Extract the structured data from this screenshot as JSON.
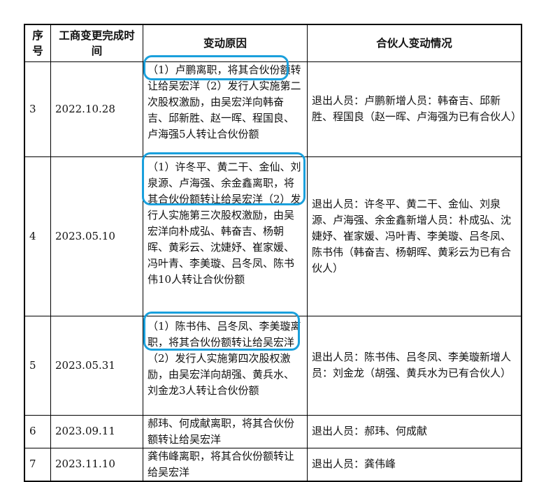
{
  "header": {
    "seq": "序号",
    "date": "工商变更完成时间",
    "reason": "变动原因",
    "change": "合伙人变动情况"
  },
  "rows": [
    {
      "seq": "3",
      "date": "2022.10.28",
      "reason": "（1）卢鹏离职，将其合伙份额转让给吴宏洋（2）发行人实施第二次股权激励，由吴宏洋向韩奋吉、邱新胜、赵一晖、程国良、卢海强5人转让合伙份额",
      "change": "退出人员：卢鹏新增人员：韩奋吉、邱新胜、程国良（赵一晖、卢海强为已有合伙人）"
    },
    {
      "seq": "4",
      "date": "2023.05.10",
      "reason": "（1）许冬平、黄二干、金仙、刘泉源、卢海强、余金鑫离职，将其合伙份额转让给吴宏洋（2）发行人实施第三次股权激励，由吴宏洋向朴成弘、韩奋吉、杨朝晖、黄彩云、沈婕妤、崔家媛、冯叶青、李美璇、吕冬凤、陈书伟10人转让合伙份额",
      "change": "退出人员：许冬平、黄二干、金仙、刘泉源、卢海强、余金鑫新增人员：朴成弘、沈婕妤、崔家媛、冯叶青、李美璇、吕冬凤、陈书伟（韩奋吉、杨朝晖、黄彩云为已有合伙人）"
    },
    {
      "seq": "5",
      "date": "2023.05.31",
      "reason": "（1）陈书伟、吕冬凤、李美璇离职，将其合伙份额转让给吴宏洋（2）发行人实施第四次股权激励，由吴宏洋向胡强、黄兵水、刘金龙3人转让合伙份额",
      "change": "退出人员：陈书伟、吕冬凤、李美璇新增人员：刘金龙（胡强、黄兵水为已有合伙人）"
    },
    {
      "seq": "6",
      "date": "2023.09.11",
      "reason": "郝玮、何成献离职，将其合伙份额转让给吴宏洋",
      "change": "退出人员：郝玮、何成献"
    },
    {
      "seq": "7",
      "date": "2023.11.10",
      "reason": "龚伟峰离职，将其合伙份额转让给吴宏洋",
      "change": "退出人员：龚伟峰"
    }
  ],
  "highlight_color": "#1aa0dc"
}
